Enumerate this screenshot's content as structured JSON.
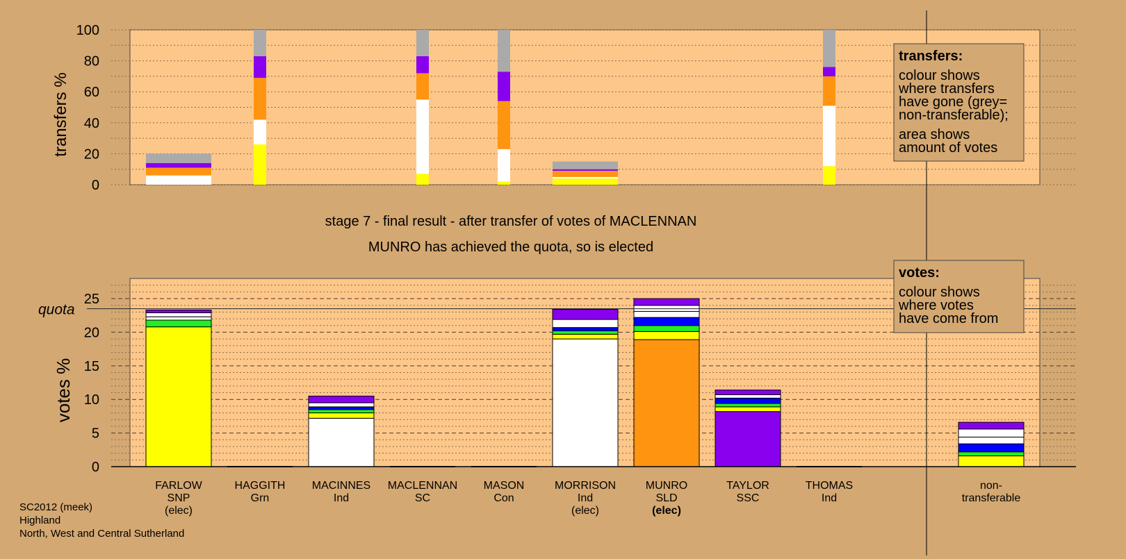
{
  "colors": {
    "page_bg": "#d4a872",
    "plot_bg": "#fdc78a",
    "legend_bg": "#d4a872",
    "snp": "#ffff00",
    "green": "#22ee22",
    "blue": "#0000ff",
    "independent": "#ffffff",
    "sld": "#ff9410",
    "ssc": "#8800ee",
    "nontransferable": "#aaaaaa"
  },
  "stage_title": "stage 7 - final result - after transfer of votes of MACLENNAN",
  "stage_subtitle": "MUNRO has achieved the quota, so is elected",
  "transfers_legend": {
    "heading": "transfers:",
    "lines1": [
      "colour shows",
      "where transfers",
      "have gone (grey=",
      "non-transferable);"
    ],
    "lines2": [
      "area shows",
      "amount of votes"
    ]
  },
  "votes_legend": {
    "heading": "votes:",
    "lines": [
      "colour shows",
      "where votes",
      "have come from"
    ]
  },
  "footer": {
    "line1": "SC2012 (meek)",
    "line2": "Highland",
    "line3": "North, West and Central Sutherland"
  },
  "chart_data": [
    {
      "type": "bar",
      "name": "transfers",
      "ylabel": "transfers %",
      "ylim": [
        0,
        100
      ],
      "yticks": [
        0,
        20,
        40,
        60,
        80,
        100
      ],
      "grid": true,
      "stacked": true,
      "bars": [
        {
          "label": "FARLOW",
          "wide": true,
          "segments": [
            {
              "color": "independent",
              "value": 6
            },
            {
              "color": "sld",
              "value": 5
            },
            {
              "color": "ssc",
              "value": 3
            },
            {
              "color": "nontransferable",
              "value": 6
            }
          ]
        },
        {
          "label": "HAGGITH",
          "wide": false,
          "segments": [
            {
              "color": "snp",
              "value": 26
            },
            {
              "color": "independent",
              "value": 16
            },
            {
              "color": "sld",
              "value": 27
            },
            {
              "color": "ssc",
              "value": 14
            },
            {
              "color": "nontransferable",
              "value": 17
            }
          ]
        },
        {
          "label": "MACLENNAN",
          "wide": false,
          "segments": [
            {
              "color": "snp",
              "value": 7
            },
            {
              "color": "independent",
              "value": 48
            },
            {
              "color": "sld",
              "value": 17
            },
            {
              "color": "ssc",
              "value": 11
            },
            {
              "color": "nontransferable",
              "value": 17
            }
          ]
        },
        {
          "label": "MASON",
          "wide": false,
          "segments": [
            {
              "color": "snp",
              "value": 2
            },
            {
              "color": "independent",
              "value": 21
            },
            {
              "color": "sld",
              "value": 31
            },
            {
              "color": "ssc",
              "value": 19
            },
            {
              "color": "nontransferable",
              "value": 27
            }
          ]
        },
        {
          "label": "MORRISON",
          "wide": true,
          "segments": [
            {
              "color": "snp",
              "value": 4
            },
            {
              "color": "independent",
              "value": 1
            },
            {
              "color": "sld",
              "value": 4
            },
            {
              "color": "ssc",
              "value": 1
            },
            {
              "color": "nontransferable",
              "value": 5
            }
          ]
        },
        {
          "label": "THOMAS",
          "wide": false,
          "segments": [
            {
              "color": "snp",
              "value": 12
            },
            {
              "color": "independent",
              "value": 39
            },
            {
              "color": "sld",
              "value": 19
            },
            {
              "color": "ssc",
              "value": 6
            },
            {
              "color": "nontransferable",
              "value": 24
            }
          ]
        }
      ]
    },
    {
      "type": "bar",
      "name": "votes",
      "ylabel": "votes %",
      "ylim": [
        0,
        28
      ],
      "yticks": [
        0,
        5,
        10,
        15,
        20,
        25
      ],
      "quota": 23.5,
      "quota_label": "quota",
      "grid": true,
      "stacked": true,
      "candidates": [
        {
          "name": "FARLOW",
          "party": "SNP",
          "status": "(elec)",
          "status_bold": false,
          "segments": [
            {
              "color": "snp",
              "value": 20.8
            },
            {
              "color": "green",
              "value": 1.0
            },
            {
              "color": "independent",
              "value": 0.5
            },
            {
              "color": "independent",
              "value": 0.6
            },
            {
              "color": "ssc",
              "value": 0.4
            }
          ]
        },
        {
          "name": "HAGGITH",
          "party": "Grn",
          "status": "",
          "status_bold": false,
          "segments": []
        },
        {
          "name": "MACINNES",
          "party": "Ind",
          "status": "",
          "status_bold": false,
          "segments": [
            {
              "color": "independent",
              "value": 7.2
            },
            {
              "color": "snp",
              "value": 0.8
            },
            {
              "color": "green",
              "value": 0.5
            },
            {
              "color": "blue",
              "value": 0.4
            },
            {
              "color": "independent",
              "value": 0.6
            },
            {
              "color": "ssc",
              "value": 1.0
            }
          ]
        },
        {
          "name": "MACLENNAN",
          "party": "SC",
          "status": "",
          "status_bold": false,
          "segments": []
        },
        {
          "name": "MASON",
          "party": "Con",
          "status": "",
          "status_bold": false,
          "segments": []
        },
        {
          "name": "MORRISON",
          "party": "Ind",
          "status": "(elec)",
          "status_bold": false,
          "segments": [
            {
              "color": "independent",
              "value": 19.0
            },
            {
              "color": "snp",
              "value": 0.7
            },
            {
              "color": "green",
              "value": 0.5
            },
            {
              "color": "blue",
              "value": 0.5
            },
            {
              "color": "independent",
              "value": 1.2
            },
            {
              "color": "ssc",
              "value": 1.5
            }
          ]
        },
        {
          "name": "MUNRO",
          "party": "SLD",
          "status": "(elec)",
          "status_bold": true,
          "segments": [
            {
              "color": "sld",
              "value": 18.9
            },
            {
              "color": "snp",
              "value": 1.2
            },
            {
              "color": "green",
              "value": 0.9
            },
            {
              "color": "blue",
              "value": 1.2
            },
            {
              "color": "independent",
              "value": 0.9
            },
            {
              "color": "independent",
              "value": 0.9
            },
            {
              "color": "ssc",
              "value": 1.0
            }
          ]
        },
        {
          "name": "TAYLOR",
          "party": "SSC",
          "status": "",
          "status_bold": false,
          "segments": [
            {
              "color": "ssc",
              "value": 8.2
            },
            {
              "color": "snp",
              "value": 0.7
            },
            {
              "color": "green",
              "value": 0.5
            },
            {
              "color": "blue",
              "value": 0.8
            },
            {
              "color": "independent",
              "value": 0.5
            },
            {
              "color": "ssc",
              "value": 0.7
            }
          ]
        },
        {
          "name": "THOMAS",
          "party": "Ind",
          "status": "",
          "status_bold": false,
          "segments": []
        }
      ],
      "nontransferable": {
        "label1": "non-",
        "label2": "transferable",
        "segments": [
          {
            "color": "snp",
            "value": 1.6
          },
          {
            "color": "green",
            "value": 0.6
          },
          {
            "color": "blue",
            "value": 1.2
          },
          {
            "color": "independent",
            "value": 1.0
          },
          {
            "color": "independent",
            "value": 1.2
          },
          {
            "color": "ssc",
            "value": 1.0
          }
        ]
      }
    }
  ]
}
